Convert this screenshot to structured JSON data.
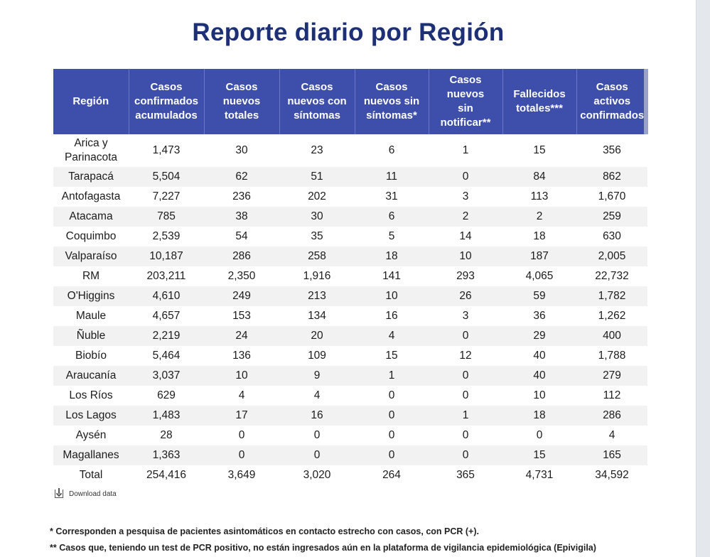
{
  "title": "Reporte diario por Región",
  "table": {
    "headers": [
      [
        "Región"
      ],
      [
        "Casos",
        "confirmados",
        "acumulados"
      ],
      [
        "Casos",
        "nuevos",
        "totales"
      ],
      [
        "Casos",
        "nuevos con",
        "síntomas"
      ],
      [
        "Casos",
        "nuevos sin",
        "síntomas*"
      ],
      [
        "Casos",
        "nuevos",
        "sin",
        "notificar**"
      ],
      [
        "Fallecidos",
        "totales***"
      ],
      [
        "Casos",
        "activos",
        "confirmados"
      ]
    ],
    "rows": [
      {
        "region": [
          "Arica y",
          "Parinacota"
        ],
        "values": [
          "1,473",
          "30",
          "23",
          "6",
          "1",
          "15",
          "356"
        ]
      },
      {
        "region": [
          "Tarapacá"
        ],
        "values": [
          "5,504",
          "62",
          "51",
          "11",
          "0",
          "84",
          "862"
        ]
      },
      {
        "region": [
          "Antofagasta"
        ],
        "values": [
          "7,227",
          "236",
          "202",
          "31",
          "3",
          "113",
          "1,670"
        ]
      },
      {
        "region": [
          "Atacama"
        ],
        "values": [
          "785",
          "38",
          "30",
          "6",
          "2",
          "2",
          "259"
        ]
      },
      {
        "region": [
          "Coquimbo"
        ],
        "values": [
          "2,539",
          "54",
          "35",
          "5",
          "14",
          "18",
          "630"
        ]
      },
      {
        "region": [
          "Valparaíso"
        ],
        "values": [
          "10,187",
          "286",
          "258",
          "18",
          "10",
          "187",
          "2,005"
        ]
      },
      {
        "region": [
          "RM"
        ],
        "values": [
          "203,211",
          "2,350",
          "1,916",
          "141",
          "293",
          "4,065",
          "22,732"
        ]
      },
      {
        "region": [
          "O'Higgins"
        ],
        "values": [
          "4,610",
          "249",
          "213",
          "10",
          "26",
          "59",
          "1,782"
        ]
      },
      {
        "region": [
          "Maule"
        ],
        "values": [
          "4,657",
          "153",
          "134",
          "16",
          "3",
          "36",
          "1,262"
        ]
      },
      {
        "region": [
          "Ñuble"
        ],
        "values": [
          "2,219",
          "24",
          "20",
          "4",
          "0",
          "29",
          "400"
        ]
      },
      {
        "region": [
          "Biobío"
        ],
        "values": [
          "5,464",
          "136",
          "109",
          "15",
          "12",
          "40",
          "1,788"
        ]
      },
      {
        "region": [
          "Araucanía"
        ],
        "values": [
          "3,037",
          "10",
          "9",
          "1",
          "0",
          "40",
          "279"
        ]
      },
      {
        "region": [
          "Los Ríos"
        ],
        "values": [
          "629",
          "4",
          "4",
          "0",
          "0",
          "10",
          "112"
        ]
      },
      {
        "region": [
          "Los Lagos"
        ],
        "values": [
          "1,483",
          "17",
          "16",
          "0",
          "1",
          "18",
          "286"
        ]
      },
      {
        "region": [
          "Aysén"
        ],
        "values": [
          "28",
          "0",
          "0",
          "0",
          "0",
          "0",
          "4"
        ]
      },
      {
        "region": [
          "Magallanes"
        ],
        "values": [
          "1,363",
          "0",
          "0",
          "0",
          "0",
          "15",
          "165"
        ]
      },
      {
        "region": [
          "Total"
        ],
        "values": [
          "254,416",
          "3,649",
          "3,020",
          "264",
          "365",
          "4,731",
          "34,592"
        ]
      }
    ]
  },
  "download_label": "Download data",
  "footnotes": [
    "* Corresponden a pesquisa de pacientes asintomáticos en contacto estrecho con casos, con PCR (+).",
    "** Casos que, teniendo un test de PCR positivo, no están ingresados aún en la plataforma de vigilancia epidemiológica (Epivigila)"
  ],
  "colors": {
    "title": "#1d2f75",
    "header_bg": "#3d4eab",
    "row_alt": "#f2f2f2"
  }
}
